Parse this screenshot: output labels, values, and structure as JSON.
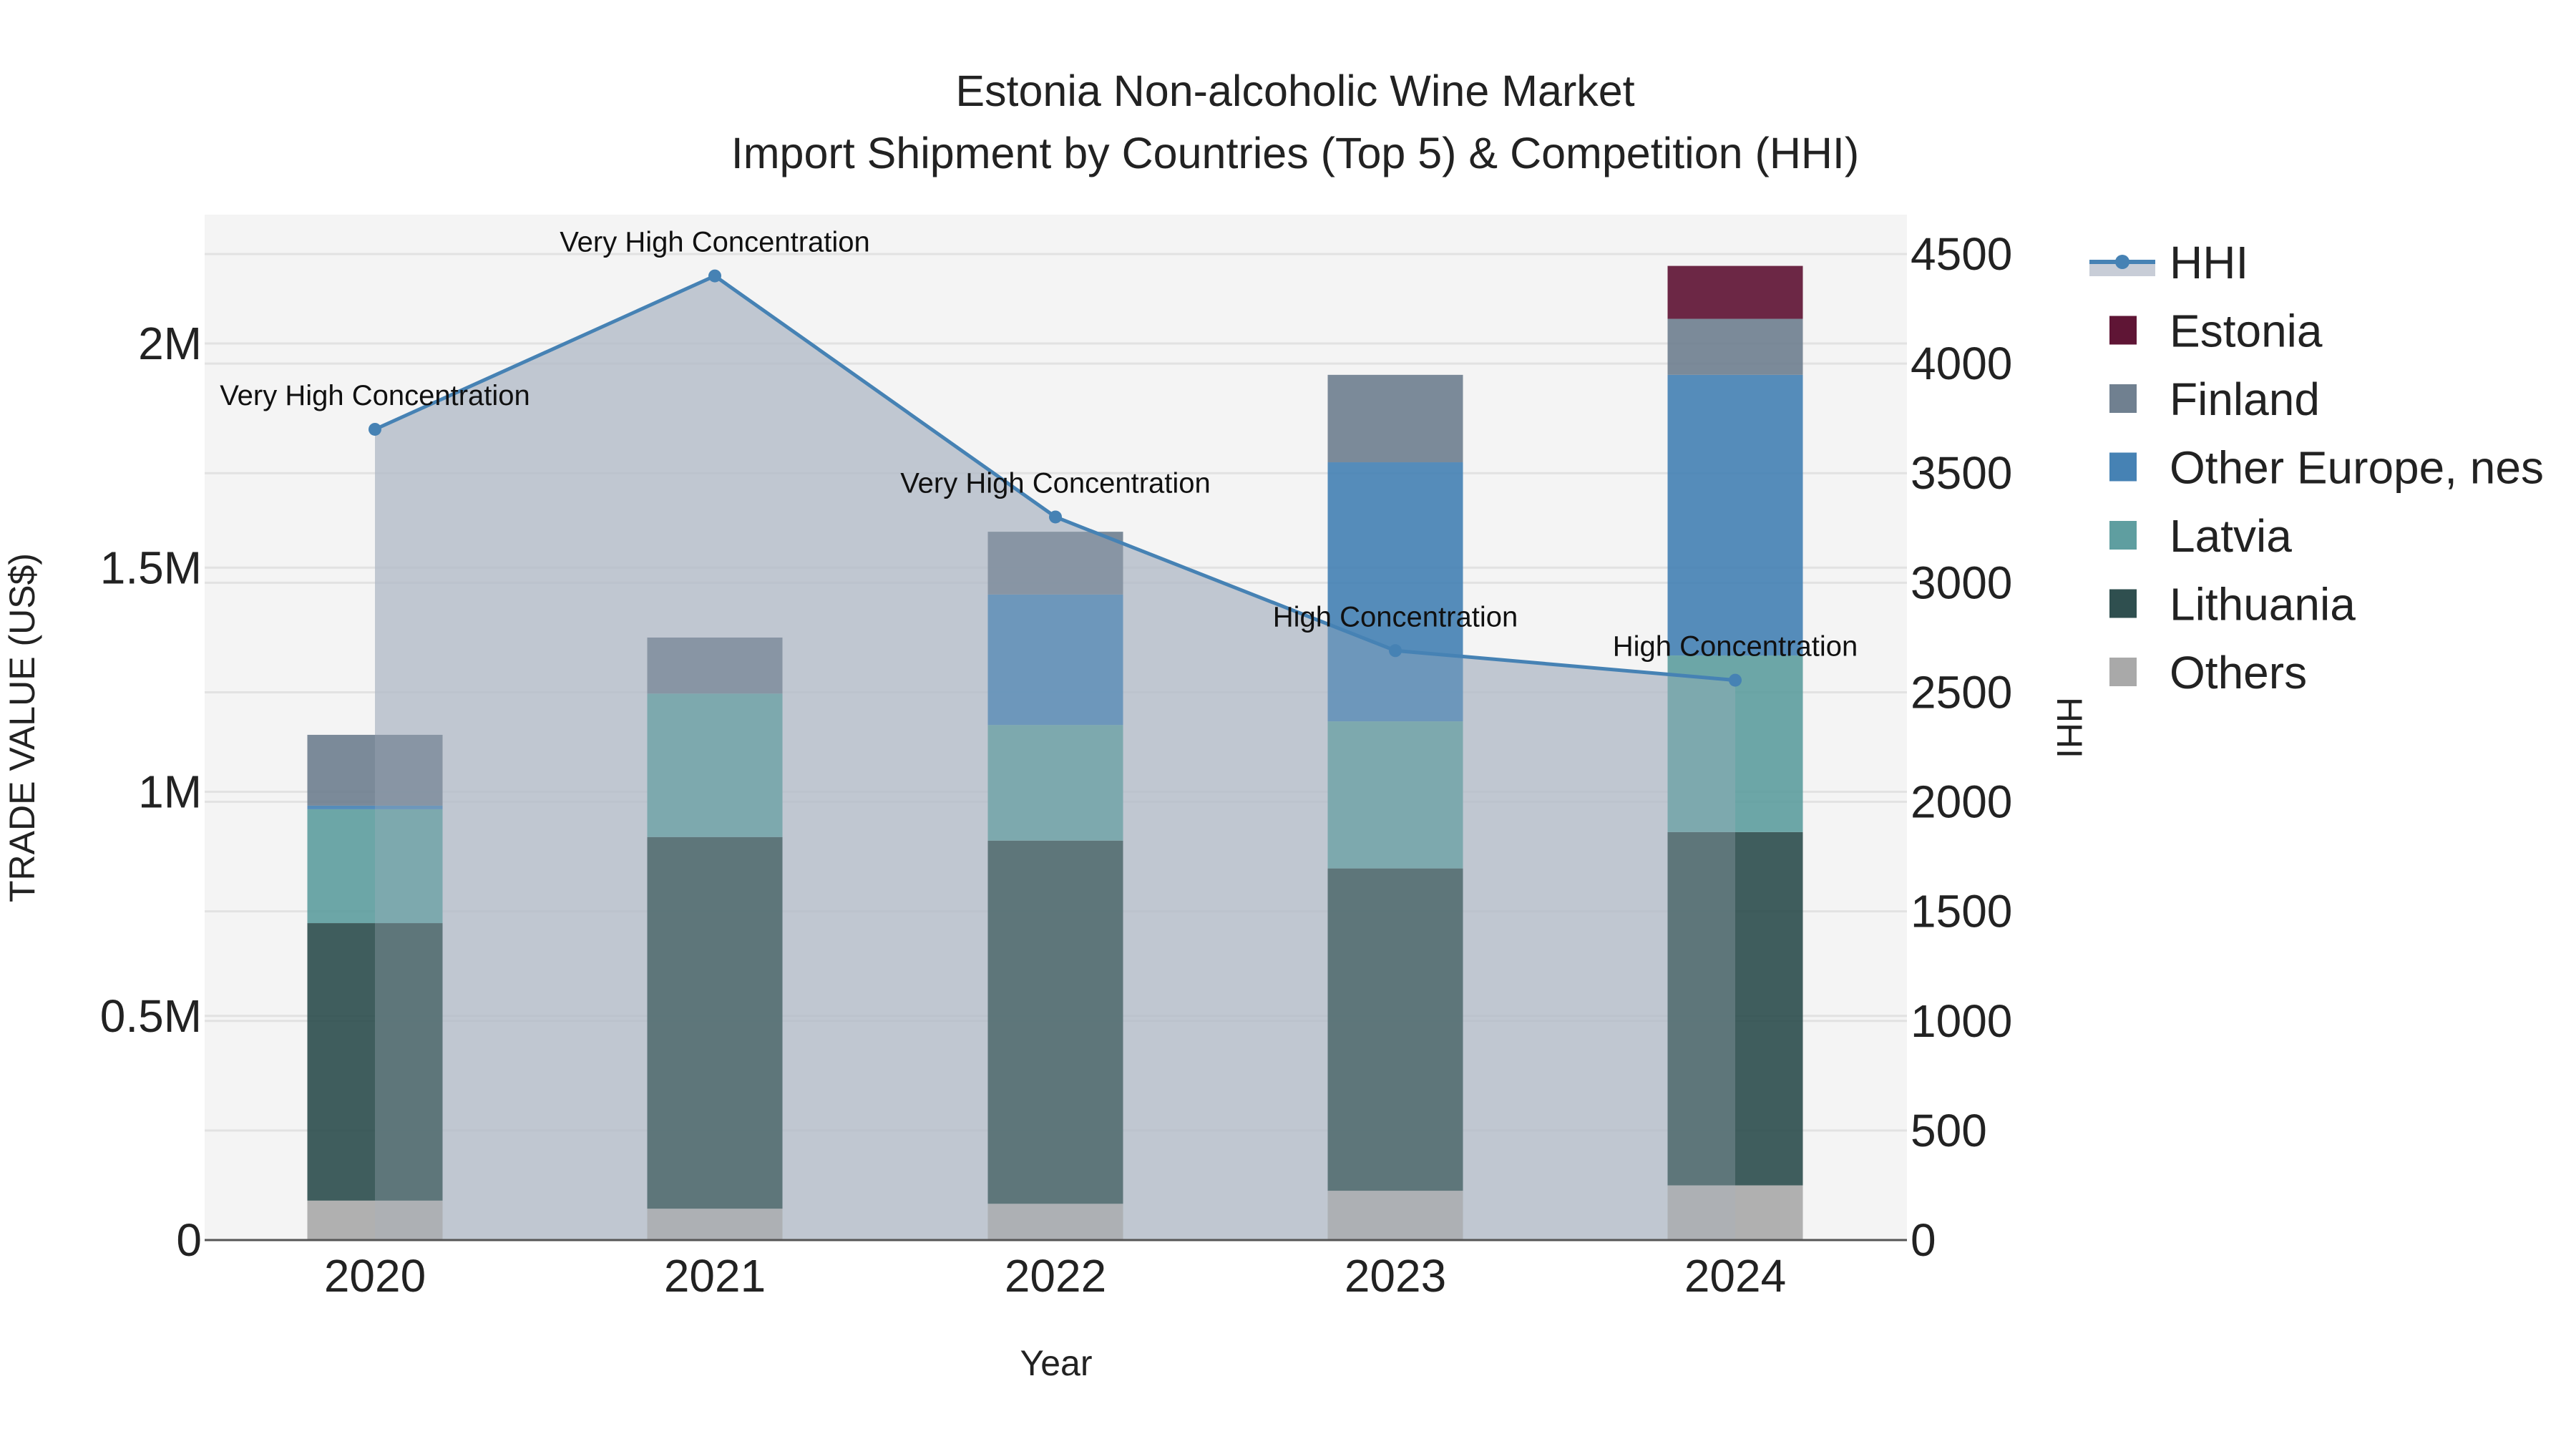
{
  "chart_data": {
    "type": "bar",
    "subtype": "stacked-bar-with-line-area",
    "title": "Estonia Non-alcoholic Wine Market",
    "subtitle": "Import Shipment by Countries (Top 5) & Competition (HHI)",
    "xlabel": "Year",
    "ylabel": "TRADE VALUE (US$)",
    "y2label": "HHI",
    "categories": [
      "2020",
      "2021",
      "2022",
      "2023",
      "2024"
    ],
    "ylim": [
      0,
      2280000
    ],
    "y2lim": [
      0,
      4680
    ],
    "yticks": [
      0,
      500000,
      1000000,
      1500000,
      2000000
    ],
    "ytick_labels": [
      "0",
      "0.5M",
      "1M",
      "1.5M",
      "2M"
    ],
    "y2ticks": [
      0,
      500,
      1000,
      1500,
      2000,
      2500,
      3000,
      3500,
      4000,
      4500
    ],
    "y2tick_labels": [
      "0",
      "500",
      "1000",
      "1500",
      "2000",
      "2500",
      "3000",
      "3500",
      "4000",
      "4500"
    ],
    "grid": true,
    "legend_position": "right",
    "series": [
      {
        "name": "Others",
        "color": "#a9a9a9",
        "values": [
          88000,
          70000,
          81000,
          110000,
          122000
        ]
      },
      {
        "name": "Lithuania",
        "color": "#2f4f4f",
        "values": [
          619000,
          829000,
          810000,
          719000,
          788000
        ]
      },
      {
        "name": "Latvia",
        "color": "#5f9ea0",
        "values": [
          254000,
          320000,
          258000,
          328000,
          394000
        ]
      },
      {
        "name": "Other Europe, nes",
        "color": "#4682b4",
        "values": [
          8000,
          0,
          291000,
          578000,
          626000
        ]
      },
      {
        "name": "Finland",
        "color": "#708090",
        "values": [
          158000,
          125000,
          140000,
          195000,
          125000
        ]
      },
      {
        "name": "Estonia",
        "color": "#5f1535",
        "values": [
          0,
          0,
          0,
          0,
          118000
        ]
      }
    ],
    "line_series": {
      "name": "HHI",
      "axis": "y2",
      "color": "#4682b4",
      "fill_color": "rgba(176,184,198,0.65)",
      "values": [
        3700,
        4400,
        3300,
        2690,
        2555
      ],
      "annotations": [
        "Very High Concentration",
        "Very High Concentration",
        "Very High Concentration",
        "High Concentration",
        "High Concentration"
      ]
    }
  },
  "legend": {
    "items": [
      {
        "label": "HHI",
        "type": "line",
        "color": "#4682b4"
      },
      {
        "label": "Estonia",
        "type": "box",
        "color": "#5f1535"
      },
      {
        "label": "Finland",
        "type": "box",
        "color": "#708090"
      },
      {
        "label": "Other Europe, nes",
        "type": "box",
        "color": "#4682b4"
      },
      {
        "label": "Latvia",
        "type": "box",
        "color": "#5f9ea0"
      },
      {
        "label": "Lithuania",
        "type": "box",
        "color": "#2f4f4f"
      },
      {
        "label": "Others",
        "type": "box",
        "color": "#a9a9a9"
      }
    ]
  },
  "colors": {
    "plot_bg": "#f4f4f4",
    "grid": "#e2e2e2",
    "axis_line": "#555555"
  }
}
